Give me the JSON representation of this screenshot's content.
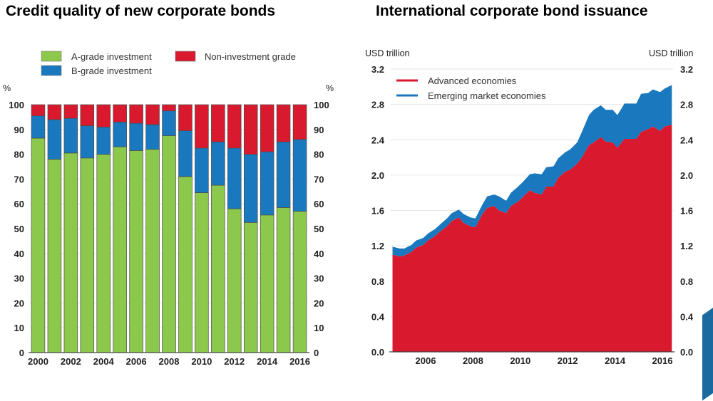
{
  "chart_data": [
    {
      "type": "bar",
      "stacked": true,
      "title": "Credit quality of new corporate bonds",
      "ylabel_left": "%",
      "ylabel_right": "%",
      "ylim": [
        0,
        100
      ],
      "yticks": [
        0,
        10,
        20,
        30,
        40,
        50,
        60,
        70,
        80,
        90,
        100
      ],
      "categories": [
        "2000",
        "2001",
        "2002",
        "2003",
        "2004",
        "2005",
        "2006",
        "2007",
        "2008",
        "2009",
        "2010",
        "2011",
        "2012",
        "2013",
        "2014",
        "2015",
        "2016"
      ],
      "xtick_labels": [
        "2000",
        "2002",
        "2004",
        "2006",
        "2008",
        "2010",
        "2012",
        "2014",
        "2016"
      ],
      "legend": [
        "A-grade investment",
        "B-grade investment",
        "Non-investment grade"
      ],
      "legend_position": "top",
      "series": [
        {
          "name": "A-grade investment",
          "color": "#8cc84b",
          "values": [
            86.5,
            78,
            80.5,
            78.5,
            80,
            83,
            81.5,
            82,
            87.5,
            71,
            64.5,
            67.5,
            58,
            52.5,
            55.5,
            58.5,
            57
          ]
        },
        {
          "name": "B-grade investment",
          "color": "#1a78be",
          "values": [
            9,
            16,
            14,
            13,
            11,
            10,
            11,
            10,
            10,
            18.5,
            18,
            17.5,
            24.5,
            27.5,
            25.5,
            26.5,
            29
          ]
        },
        {
          "name": "Non-investment grade",
          "color": "#d9192e",
          "values": [
            4.5,
            6,
            5.5,
            8.5,
            9,
            7,
            7.5,
            8,
            2.5,
            10.5,
            17.5,
            15,
            17.5,
            20,
            19,
            15,
            14
          ]
        }
      ]
    },
    {
      "type": "area",
      "stacked": true,
      "title": "International corporate bond issuance",
      "ylabel_left": "USD trillion",
      "ylabel_right": "USD trillion",
      "ylim": [
        0,
        3.2
      ],
      "yticks": [
        "0.0",
        "0.4",
        "0.8",
        "1.2",
        "1.6",
        "2.0",
        "2.4",
        "2.8",
        "3.2"
      ],
      "xlim": [
        2004.5,
        2016.5
      ],
      "xtick_labels": [
        "2006",
        "2008",
        "2010",
        "2012",
        "2014",
        "2016"
      ],
      "legend": [
        "Advanced economies",
        "Emerging market  economies"
      ],
      "legend_position": "top-left",
      "x": [
        2004.6,
        2004.9,
        2005.1,
        2005.4,
        2005.6,
        2005.9,
        2006.1,
        2006.4,
        2006.6,
        2006.9,
        2007.1,
        2007.4,
        2007.6,
        2007.9,
        2008.1,
        2008.4,
        2008.6,
        2008.9,
        2009.1,
        2009.4,
        2009.6,
        2009.9,
        2010.1,
        2010.4,
        2010.6,
        2010.9,
        2011.1,
        2011.4,
        2011.6,
        2011.9,
        2012.1,
        2012.4,
        2012.6,
        2012.9,
        2013.1,
        2013.4,
        2013.6,
        2013.9,
        2014.1,
        2014.4,
        2014.6,
        2014.9,
        2015.1,
        2015.4,
        2015.6,
        2015.9,
        2016.1,
        2016.4
      ],
      "series": [
        {
          "name": "Advanced economies",
          "color": "#d9192e",
          "values": [
            1.1,
            1.08,
            1.09,
            1.13,
            1.18,
            1.21,
            1.26,
            1.31,
            1.36,
            1.42,
            1.48,
            1.52,
            1.46,
            1.42,
            1.41,
            1.56,
            1.63,
            1.65,
            1.6,
            1.57,
            1.65,
            1.7,
            1.75,
            1.83,
            1.8,
            1.78,
            1.87,
            1.87,
            1.97,
            2.04,
            2.06,
            2.13,
            2.2,
            2.34,
            2.37,
            2.43,
            2.38,
            2.37,
            2.31,
            2.41,
            2.41,
            2.41,
            2.49,
            2.52,
            2.55,
            2.5,
            2.55,
            2.57
          ]
        },
        {
          "name": "Emerging market  economies",
          "color": "#1a78be",
          "values": [
            0.09,
            0.09,
            0.08,
            0.08,
            0.08,
            0.08,
            0.08,
            0.08,
            0.08,
            0.09,
            0.09,
            0.09,
            0.1,
            0.1,
            0.1,
            0.11,
            0.13,
            0.13,
            0.16,
            0.14,
            0.15,
            0.17,
            0.17,
            0.18,
            0.22,
            0.23,
            0.22,
            0.23,
            0.22,
            0.22,
            0.23,
            0.24,
            0.29,
            0.34,
            0.37,
            0.36,
            0.36,
            0.37,
            0.37,
            0.4,
            0.4,
            0.4,
            0.43,
            0.41,
            0.42,
            0.44,
            0.43,
            0.45
          ]
        }
      ]
    }
  ]
}
